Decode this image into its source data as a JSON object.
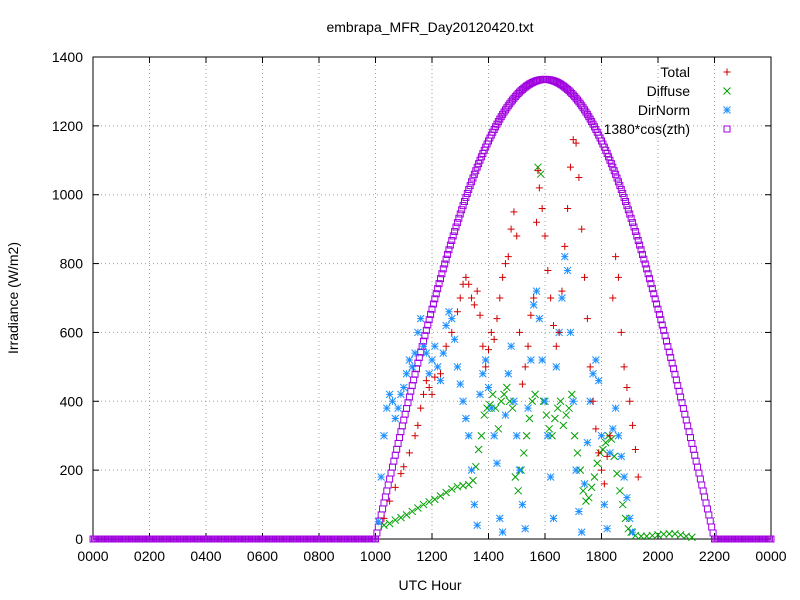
{
  "chart_data": {
    "type": "scatter",
    "title": "embrapa_MFR_Day20120420.txt",
    "xlabel": "UTC Hour",
    "ylabel": "Irradiance (W/m2)",
    "xlim": [
      0,
      2400
    ],
    "ylim": [
      0,
      1400
    ],
    "x_ticks": [
      "0000",
      "0200",
      "0400",
      "0600",
      "0800",
      "1000",
      "1200",
      "1400",
      "1600",
      "1800",
      "2000",
      "2200",
      "0000"
    ],
    "y_ticks": [
      "0",
      "200",
      "400",
      "600",
      "800",
      "1000",
      "1200",
      "1400"
    ],
    "grid": true,
    "legend": "top-right",
    "series": [
      {
        "name": "Total",
        "marker": "plus",
        "color": "#d00000",
        "points": [
          [
            1030,
            60
          ],
          [
            1050,
            110
          ],
          [
            1070,
            150
          ],
          [
            1090,
            190
          ],
          [
            1100,
            210
          ],
          [
            1120,
            250
          ],
          [
            1140,
            300
          ],
          [
            1150,
            330
          ],
          [
            1160,
            380
          ],
          [
            1170,
            420
          ],
          [
            1180,
            460
          ],
          [
            1190,
            440
          ],
          [
            1200,
            420
          ],
          [
            1210,
            470
          ],
          [
            1230,
            480
          ],
          [
            1250,
            560
          ],
          [
            1270,
            600
          ],
          [
            1290,
            660
          ],
          [
            1300,
            700
          ],
          [
            1310,
            740
          ],
          [
            1320,
            760
          ],
          [
            1330,
            740
          ],
          [
            1340,
            700
          ],
          [
            1350,
            680
          ],
          [
            1360,
            720
          ],
          [
            1370,
            650
          ],
          [
            1380,
            560
          ],
          [
            1390,
            500
          ],
          [
            1400,
            550
          ],
          [
            1410,
            600
          ],
          [
            1420,
            580
          ],
          [
            1430,
            640
          ],
          [
            1440,
            700
          ],
          [
            1450,
            760
          ],
          [
            1460,
            800
          ],
          [
            1470,
            820
          ],
          [
            1480,
            900
          ],
          [
            1490,
            950
          ],
          [
            1500,
            880
          ],
          [
            1510,
            600
          ],
          [
            1520,
            450
          ],
          [
            1530,
            500
          ],
          [
            1540,
            560
          ],
          [
            1550,
            650
          ],
          [
            1560,
            700
          ],
          [
            1570,
            920
          ],
          [
            1575,
            1070
          ],
          [
            1580,
            1020
          ],
          [
            1590,
            960
          ],
          [
            1600,
            880
          ],
          [
            1610,
            780
          ],
          [
            1620,
            700
          ],
          [
            1630,
            620
          ],
          [
            1640,
            560
          ],
          [
            1650,
            600
          ],
          [
            1660,
            720
          ],
          [
            1670,
            850
          ],
          [
            1680,
            960
          ],
          [
            1690,
            1080
          ],
          [
            1700,
            1160
          ],
          [
            1710,
            1150
          ],
          [
            1720,
            1050
          ],
          [
            1730,
            900
          ],
          [
            1740,
            760
          ],
          [
            1750,
            640
          ],
          [
            1760,
            500
          ],
          [
            1770,
            400
          ],
          [
            1780,
            320
          ],
          [
            1790,
            250
          ],
          [
            1800,
            200
          ],
          [
            1810,
            160
          ],
          [
            1820,
            240
          ],
          [
            1830,
            300
          ],
          [
            1840,
            700
          ],
          [
            1850,
            820
          ],
          [
            1860,
            760
          ],
          [
            1870,
            600
          ],
          [
            1880,
            500
          ],
          [
            1890,
            440
          ],
          [
            1900,
            400
          ],
          [
            1910,
            330
          ],
          [
            1920,
            260
          ],
          [
            1930,
            180
          ]
        ]
      },
      {
        "name": "Diffuse",
        "marker": "cross",
        "color": "#00a000",
        "points": [
          [
            1030,
            40
          ],
          [
            1050,
            45
          ],
          [
            1070,
            55
          ],
          [
            1090,
            62
          ],
          [
            1110,
            70
          ],
          [
            1130,
            80
          ],
          [
            1150,
            90
          ],
          [
            1170,
            100
          ],
          [
            1190,
            108
          ],
          [
            1210,
            115
          ],
          [
            1230,
            125
          ],
          [
            1250,
            135
          ],
          [
            1270,
            145
          ],
          [
            1290,
            152
          ],
          [
            1310,
            155
          ],
          [
            1330,
            158
          ],
          [
            1345,
            170
          ],
          [
            1355,
            210
          ],
          [
            1365,
            260
          ],
          [
            1375,
            300
          ],
          [
            1385,
            360
          ],
          [
            1395,
            380
          ],
          [
            1405,
            390
          ],
          [
            1415,
            420
          ],
          [
            1425,
            380
          ],
          [
            1435,
            320
          ],
          [
            1445,
            400
          ],
          [
            1455,
            420
          ],
          [
            1465,
            440
          ],
          [
            1475,
            400
          ],
          [
            1485,
            380
          ],
          [
            1495,
            180
          ],
          [
            1505,
            140
          ],
          [
            1515,
            200
          ],
          [
            1525,
            250
          ],
          [
            1535,
            300
          ],
          [
            1545,
            350
          ],
          [
            1555,
            400
          ],
          [
            1565,
            420
          ],
          [
            1575,
            1080
          ],
          [
            1585,
            1060
          ],
          [
            1595,
            400
          ],
          [
            1605,
            360
          ],
          [
            1615,
            320
          ],
          [
            1625,
            300
          ],
          [
            1635,
            350
          ],
          [
            1645,
            380
          ],
          [
            1655,
            400
          ],
          [
            1665,
            330
          ],
          [
            1675,
            360
          ],
          [
            1685,
            380
          ],
          [
            1695,
            420
          ],
          [
            1705,
            300
          ],
          [
            1715,
            250
          ],
          [
            1725,
            200
          ],
          [
            1735,
            140
          ],
          [
            1745,
            110
          ],
          [
            1755,
            120
          ],
          [
            1765,
            150
          ],
          [
            1775,
            180
          ],
          [
            1785,
            220
          ],
          [
            1795,
            250
          ],
          [
            1805,
            260
          ],
          [
            1815,
            280
          ],
          [
            1825,
            300
          ],
          [
            1835,
            290
          ],
          [
            1845,
            240
          ],
          [
            1855,
            190
          ],
          [
            1865,
            140
          ],
          [
            1875,
            100
          ],
          [
            1885,
            60
          ],
          [
            1895,
            30
          ],
          [
            1905,
            20
          ],
          [
            1920,
            10
          ],
          [
            1940,
            8
          ],
          [
            1960,
            8
          ],
          [
            1980,
            10
          ],
          [
            2000,
            12
          ],
          [
            2020,
            14
          ],
          [
            2040,
            15
          ],
          [
            2060,
            15
          ],
          [
            2080,
            12
          ],
          [
            2100,
            8
          ],
          [
            2120,
            5
          ]
        ]
      },
      {
        "name": "DirNorm",
        "marker": "star",
        "color": "#1e90ff",
        "points": [
          [
            1010,
            50
          ],
          [
            1020,
            180
          ],
          [
            1030,
            300
          ],
          [
            1040,
            380
          ],
          [
            1050,
            420
          ],
          [
            1060,
            400
          ],
          [
            1070,
            350
          ],
          [
            1080,
            380
          ],
          [
            1090,
            420
          ],
          [
            1100,
            440
          ],
          [
            1110,
            480
          ],
          [
            1120,
            520
          ],
          [
            1130,
            500
          ],
          [
            1140,
            540
          ],
          [
            1150,
            600
          ],
          [
            1160,
            640
          ],
          [
            1170,
            560
          ],
          [
            1180,
            540
          ],
          [
            1190,
            480
          ],
          [
            1200,
            520
          ],
          [
            1210,
            560
          ],
          [
            1220,
            500
          ],
          [
            1230,
            460
          ],
          [
            1240,
            540
          ],
          [
            1250,
            620
          ],
          [
            1260,
            660
          ],
          [
            1270,
            640
          ],
          [
            1280,
            580
          ],
          [
            1290,
            500
          ],
          [
            1300,
            450
          ],
          [
            1310,
            400
          ],
          [
            1320,
            350
          ],
          [
            1330,
            300
          ],
          [
            1340,
            200
          ],
          [
            1350,
            100
          ],
          [
            1360,
            40
          ],
          [
            1370,
            420
          ],
          [
            1380,
            480
          ],
          [
            1390,
            520
          ],
          [
            1400,
            440
          ],
          [
            1410,
            380
          ],
          [
            1420,
            300
          ],
          [
            1430,
            220
          ],
          [
            1440,
            60
          ],
          [
            1450,
            20
          ],
          [
            1460,
            360
          ],
          [
            1470,
            480
          ],
          [
            1480,
            560
          ],
          [
            1490,
            400
          ],
          [
            1500,
            300
          ],
          [
            1510,
            200
          ],
          [
            1520,
            100
          ],
          [
            1530,
            30
          ],
          [
            1540,
            380
          ],
          [
            1550,
            520
          ],
          [
            1560,
            680
          ],
          [
            1570,
            720
          ],
          [
            1580,
            640
          ],
          [
            1590,
            520
          ],
          [
            1600,
            400
          ],
          [
            1610,
            300
          ],
          [
            1620,
            180
          ],
          [
            1630,
            60
          ],
          [
            1640,
            500
          ],
          [
            1650,
            600
          ],
          [
            1660,
            700
          ],
          [
            1670,
            820
          ],
          [
            1680,
            780
          ],
          [
            1690,
            600
          ],
          [
            1700,
            400
          ],
          [
            1710,
            200
          ],
          [
            1720,
            80
          ],
          [
            1730,
            20
          ],
          [
            1740,
            160
          ],
          [
            1750,
            280
          ],
          [
            1760,
            400
          ],
          [
            1770,
            480
          ],
          [
            1780,
            520
          ],
          [
            1790,
            460
          ],
          [
            1800,
            300
          ],
          [
            1810,
            100
          ],
          [
            1820,
            30
          ],
          [
            1830,
            250
          ],
          [
            1840,
            320
          ],
          [
            1850,
            380
          ],
          [
            1860,
            300
          ],
          [
            1870,
            240
          ],
          [
            1880,
            180
          ],
          [
            1890,
            120
          ],
          [
            1900,
            60
          ],
          [
            1910,
            20
          ]
        ]
      },
      {
        "name": "1380*cos(zth)",
        "marker": "square",
        "color": "#a000e0",
        "peak": 1335,
        "peak_time": 1600,
        "rise": 1000,
        "set": 2200
      }
    ]
  }
}
